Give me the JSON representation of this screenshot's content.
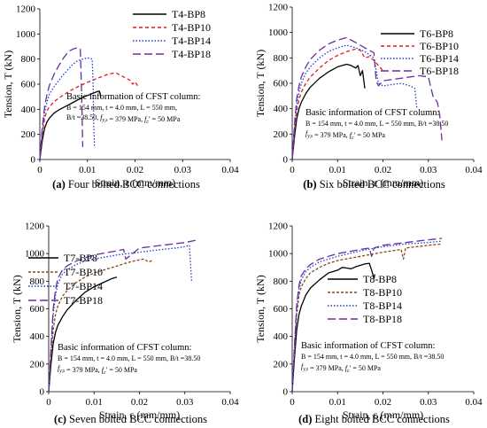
{
  "chart_data": [
    {
      "type": "line",
      "caption_tag": "(a)",
      "caption_text": " Four bolted BCC connections",
      "xlabel": "Strain, ε (mm/mm)",
      "ylabel": "Tension, T (kN)",
      "xlim": [
        0,
        0.04
      ],
      "ylim": [
        0,
        1200
      ],
      "xticks": [
        "0",
        "0.01",
        "0.02",
        "0.03",
        "0.04"
      ],
      "yticks": [
        "0",
        "200",
        "400",
        "600",
        "800",
        "1000",
        "1200"
      ],
      "legend_position": "top-right",
      "info_title": "Basic information of CFST column:",
      "info_lines": [
        "B = 154 mm, t = 4.0 mm, L = 550 mm,",
        "B/t =38.50, f_y,s = 379 MPa, f_c' = 50 MPa"
      ],
      "series": [
        {
          "name": "T4-BP8",
          "color": "#000000",
          "dash": "solid",
          "x": [
            0,
            0.0005,
            0.001,
            0.0015,
            0.002,
            0.003,
            0.004,
            0.005,
            0.006,
            0.007,
            0.008,
            0.009,
            0.01,
            0.011,
            0.012,
            0.0125,
            0.0127,
            0.0128
          ],
          "y": [
            0,
            150,
            250,
            300,
            330,
            370,
            395,
            415,
            435,
            455,
            475,
            495,
            510,
            525,
            540,
            545,
            520,
            490
          ]
        },
        {
          "name": "T4-BP10",
          "color": "#e0191e",
          "dash": "4,3",
          "x": [
            0,
            0.0005,
            0.001,
            0.0015,
            0.002,
            0.003,
            0.004,
            0.006,
            0.008,
            0.01,
            0.012,
            0.014,
            0.015,
            0.016,
            0.017,
            0.018,
            0.019,
            0.0195,
            0.02,
            0.0205,
            0.021
          ],
          "y": [
            0,
            200,
            330,
            390,
            420,
            460,
            490,
            540,
            580,
            615,
            645,
            675,
            685,
            690,
            670,
            650,
            630,
            600,
            620,
            590,
            600
          ]
        },
        {
          "name": "T4-BP14",
          "color": "#1a3dd6",
          "dash": "1.5,2",
          "x": [
            0,
            0.0005,
            0.001,
            0.0015,
            0.002,
            0.003,
            0.004,
            0.005,
            0.006,
            0.007,
            0.008,
            0.009,
            0.01,
            0.011,
            0.0112,
            0.0113,
            0.0115
          ],
          "y": [
            0,
            220,
            380,
            460,
            520,
            580,
            630,
            680,
            720,
            760,
            790,
            800,
            810,
            800,
            600,
            300,
            100
          ]
        },
        {
          "name": "T4-BP18",
          "color": "#6a2ea0",
          "dash": "9,4",
          "x": [
            0,
            0.0005,
            0.001,
            0.0015,
            0.002,
            0.003,
            0.004,
            0.005,
            0.006,
            0.007,
            0.008,
            0.0085,
            0.0088,
            0.009
          ],
          "y": [
            0,
            250,
            420,
            520,
            590,
            680,
            750,
            810,
            860,
            880,
            890,
            880,
            500,
            100
          ]
        }
      ]
    },
    {
      "type": "line",
      "caption_tag": "(b)",
      "caption_text": " Six bolted BCC connections",
      "xlabel": "Strain, ε (mm/mm)",
      "ylabel": "Tension, T (kN)",
      "xlim": [
        0,
        0.04
      ],
      "ylim": [
        0,
        1200
      ],
      "xticks": [
        "0",
        "0.01",
        "0.02",
        "0.03",
        "0.04"
      ],
      "yticks": [
        "0",
        "200",
        "400",
        "600",
        "800",
        "1000",
        "1200"
      ],
      "legend_position": "top-right",
      "info_title": "Basic information of CFST column:",
      "info_lines": [
        "B = 154 mm, t = 4.0 mm, L = 550 mm, B/t =38.50",
        "f_y,s = 379 MPa, f_c' = 50 MPa"
      ],
      "series": [
        {
          "name": "T6-BP8",
          "color": "#000000",
          "dash": "solid",
          "x": [
            0,
            0.0005,
            0.001,
            0.0015,
            0.002,
            0.003,
            0.004,
            0.006,
            0.008,
            0.01,
            0.012,
            0.013,
            0.014,
            0.0145,
            0.015,
            0.0155,
            0.016
          ],
          "y": [
            0,
            180,
            320,
            400,
            450,
            520,
            570,
            640,
            690,
            730,
            750,
            740,
            720,
            740,
            660,
            700,
            560
          ]
        },
        {
          "name": "T6-BP10",
          "color": "#e0191e",
          "dash": "4,3",
          "x": [
            0,
            0.0005,
            0.001,
            0.0015,
            0.002,
            0.003,
            0.004,
            0.006,
            0.008,
            0.01,
            0.012,
            0.014,
            0.015,
            0.016,
            0.017,
            0.018,
            0.019,
            0.02
          ],
          "y": [
            0,
            220,
            380,
            470,
            530,
            600,
            650,
            720,
            780,
            820,
            850,
            870,
            860,
            800,
            810,
            780,
            740,
            700
          ]
        },
        {
          "name": "T6-BP14",
          "color": "#1a3dd6",
          "dash": "1.5,2",
          "x": [
            0,
            0.0005,
            0.001,
            0.0015,
            0.002,
            0.003,
            0.004,
            0.006,
            0.008,
            0.01,
            0.012,
            0.014,
            0.016,
            0.018,
            0.019,
            0.02,
            0.022,
            0.024,
            0.026,
            0.027,
            0.0275
          ],
          "y": [
            0,
            250,
            430,
            530,
            600,
            680,
            730,
            800,
            850,
            880,
            900,
            880,
            850,
            800,
            600,
            580,
            590,
            600,
            580,
            560,
            400
          ]
        },
        {
          "name": "T6-BP18",
          "color": "#6a2ea0",
          "dash": "9,4",
          "x": [
            0,
            0.0005,
            0.001,
            0.0015,
            0.002,
            0.003,
            0.004,
            0.006,
            0.008,
            0.01,
            0.012,
            0.013,
            0.014,
            0.016,
            0.018,
            0.0185,
            0.019,
            0.02,
            0.022,
            0.024,
            0.026,
            0.028,
            0.03,
            0.031,
            0.032,
            0.0325,
            0.033
          ],
          "y": [
            0,
            280,
            480,
            580,
            650,
            730,
            790,
            860,
            910,
            940,
            960,
            940,
            920,
            880,
            840,
            620,
            580,
            620,
            630,
            640,
            650,
            660,
            650,
            500,
            450,
            350,
            150
          ]
        }
      ]
    },
    {
      "type": "line",
      "caption_tag": "(c)",
      "caption_text": " Seven bolted BCC connections",
      "xlabel": "Strain, ε (mm/mm)",
      "ylabel": "Tension, T (kN)",
      "xlim": [
        0,
        0.04
      ],
      "ylim": [
        0,
        1200
      ],
      "xticks": [
        "0",
        "0.01",
        "0.02",
        "0.03",
        "0.04"
      ],
      "yticks": [
        "0",
        "200",
        "400",
        "600",
        "800",
        "1000",
        "1200"
      ],
      "legend_position": "top-left",
      "info_title": "Basic information of CFST column:",
      "info_lines": [
        "B = 154 mm, t = 4.0 mm, L = 550 mm, B/t =38.50",
        "f_y,s = 379 MPa, f_c' = 50 MPa"
      ],
      "series": [
        {
          "name": "T7-BP8",
          "color": "#000000",
          "dash": "solid",
          "x": [
            0,
            0.0005,
            0.001,
            0.0015,
            0.002,
            0.003,
            0.004,
            0.006,
            0.008,
            0.01,
            0.012,
            0.014,
            0.015
          ],
          "y": [
            0,
            200,
            350,
            430,
            480,
            540,
            590,
            660,
            720,
            760,
            790,
            820,
            830
          ]
        },
        {
          "name": "T7-BP10",
          "color": "#8b4513",
          "dash": "3,2",
          "x": [
            0,
            0.0005,
            0.001,
            0.0015,
            0.002,
            0.003,
            0.004,
            0.006,
            0.008,
            0.01,
            0.012,
            0.014,
            0.016,
            0.018,
            0.02,
            0.021,
            0.022,
            0.023
          ],
          "y": [
            0,
            250,
            450,
            560,
            620,
            690,
            730,
            790,
            830,
            860,
            880,
            900,
            920,
            940,
            955,
            960,
            940,
            950
          ]
        },
        {
          "name": "T7-BP14",
          "color": "#1a3dd6",
          "dash": "1.5,2",
          "x": [
            0,
            0.0005,
            0.001,
            0.0015,
            0.002,
            0.003,
            0.004,
            0.006,
            0.008,
            0.01,
            0.015,
            0.02,
            0.025,
            0.028,
            0.03,
            0.031,
            0.0315
          ],
          "y": [
            0,
            300,
            560,
            700,
            780,
            850,
            880,
            920,
            945,
            960,
            990,
            1010,
            1030,
            1040,
            1050,
            1060,
            800
          ]
        },
        {
          "name": "T7-BP18",
          "color": "#6a2ea0",
          "dash": "9,4",
          "x": [
            0,
            0.0005,
            0.001,
            0.0015,
            0.002,
            0.003,
            0.004,
            0.006,
            0.008,
            0.01,
            0.015,
            0.0165,
            0.017,
            0.02,
            0.025,
            0.03,
            0.033
          ],
          "y": [
            0,
            320,
            600,
            740,
            820,
            880,
            910,
            945,
            970,
            990,
            1020,
            1030,
            960,
            1040,
            1060,
            1080,
            1100
          ]
        }
      ]
    },
    {
      "type": "line",
      "caption_tag": "(d)",
      "caption_text": " Eight bolted BCC connections",
      "xlabel": "Strain, ε (mm/mm)",
      "ylabel": "Tension, T (kN)",
      "xlim": [
        0,
        0.04
      ],
      "ylim": [
        0,
        1200
      ],
      "xticks": [
        "0",
        "0.01",
        "0.02",
        "0.03",
        "0.04"
      ],
      "yticks": [
        "0",
        "200",
        "400",
        "600",
        "800",
        "1000",
        "1200"
      ],
      "legend_position": "center-right",
      "info_title": "Basic information of CFST column:",
      "info_lines": [
        "B = 154 mm, t = 4.0 mm, L = 550 mm, B/t =38.50",
        "f_y,s = 379 MPa, f_c' = 50 MPa"
      ],
      "series": [
        {
          "name": "T8-BP8",
          "color": "#000000",
          "dash": "solid",
          "x": [
            0,
            0.0005,
            0.001,
            0.0015,
            0.002,
            0.003,
            0.004,
            0.006,
            0.008,
            0.01,
            0.011,
            0.012,
            0.013,
            0.014,
            0.016,
            0.017,
            0.0175,
            0.018,
            0.0182
          ],
          "y": [
            0,
            250,
            450,
            560,
            620,
            700,
            750,
            810,
            860,
            880,
            900,
            895,
            890,
            905,
            925,
            930,
            880,
            820,
            850
          ]
        },
        {
          "name": "T8-BP10",
          "color": "#8b4513",
          "dash": "3,2",
          "x": [
            0,
            0.0005,
            0.001,
            0.0015,
            0.002,
            0.003,
            0.004,
            0.006,
            0.008,
            0.01,
            0.015,
            0.02,
            0.024,
            0.0245,
            0.025,
            0.03,
            0.033
          ],
          "y": [
            0,
            300,
            560,
            700,
            760,
            820,
            860,
            900,
            930,
            950,
            980,
            1010,
            1030,
            960,
            1040,
            1060,
            1070
          ]
        },
        {
          "name": "T8-BP14",
          "color": "#1a3dd6",
          "dash": "1.5,2",
          "x": [
            0,
            0.0005,
            0.001,
            0.0015,
            0.002,
            0.003,
            0.004,
            0.006,
            0.008,
            0.01,
            0.015,
            0.02,
            0.025,
            0.03,
            0.033
          ],
          "y": [
            0,
            320,
            600,
            740,
            810,
            870,
            900,
            940,
            960,
            980,
            1020,
            1050,
            1070,
            1080,
            1090
          ]
        },
        {
          "name": "T8-BP18",
          "color": "#6a2ea0",
          "dash": "9,4",
          "x": [
            0,
            0.0005,
            0.001,
            0.0015,
            0.002,
            0.003,
            0.004,
            0.006,
            0.008,
            0.01,
            0.015,
            0.017,
            0.0175,
            0.018,
            0.02,
            0.025,
            0.03,
            0.033
          ],
          "y": [
            0,
            340,
            630,
            770,
            840,
            890,
            920,
            960,
            980,
            1000,
            1030,
            1040,
            980,
            1040,
            1060,
            1080,
            1100,
            1110
          ]
        }
      ]
    }
  ]
}
